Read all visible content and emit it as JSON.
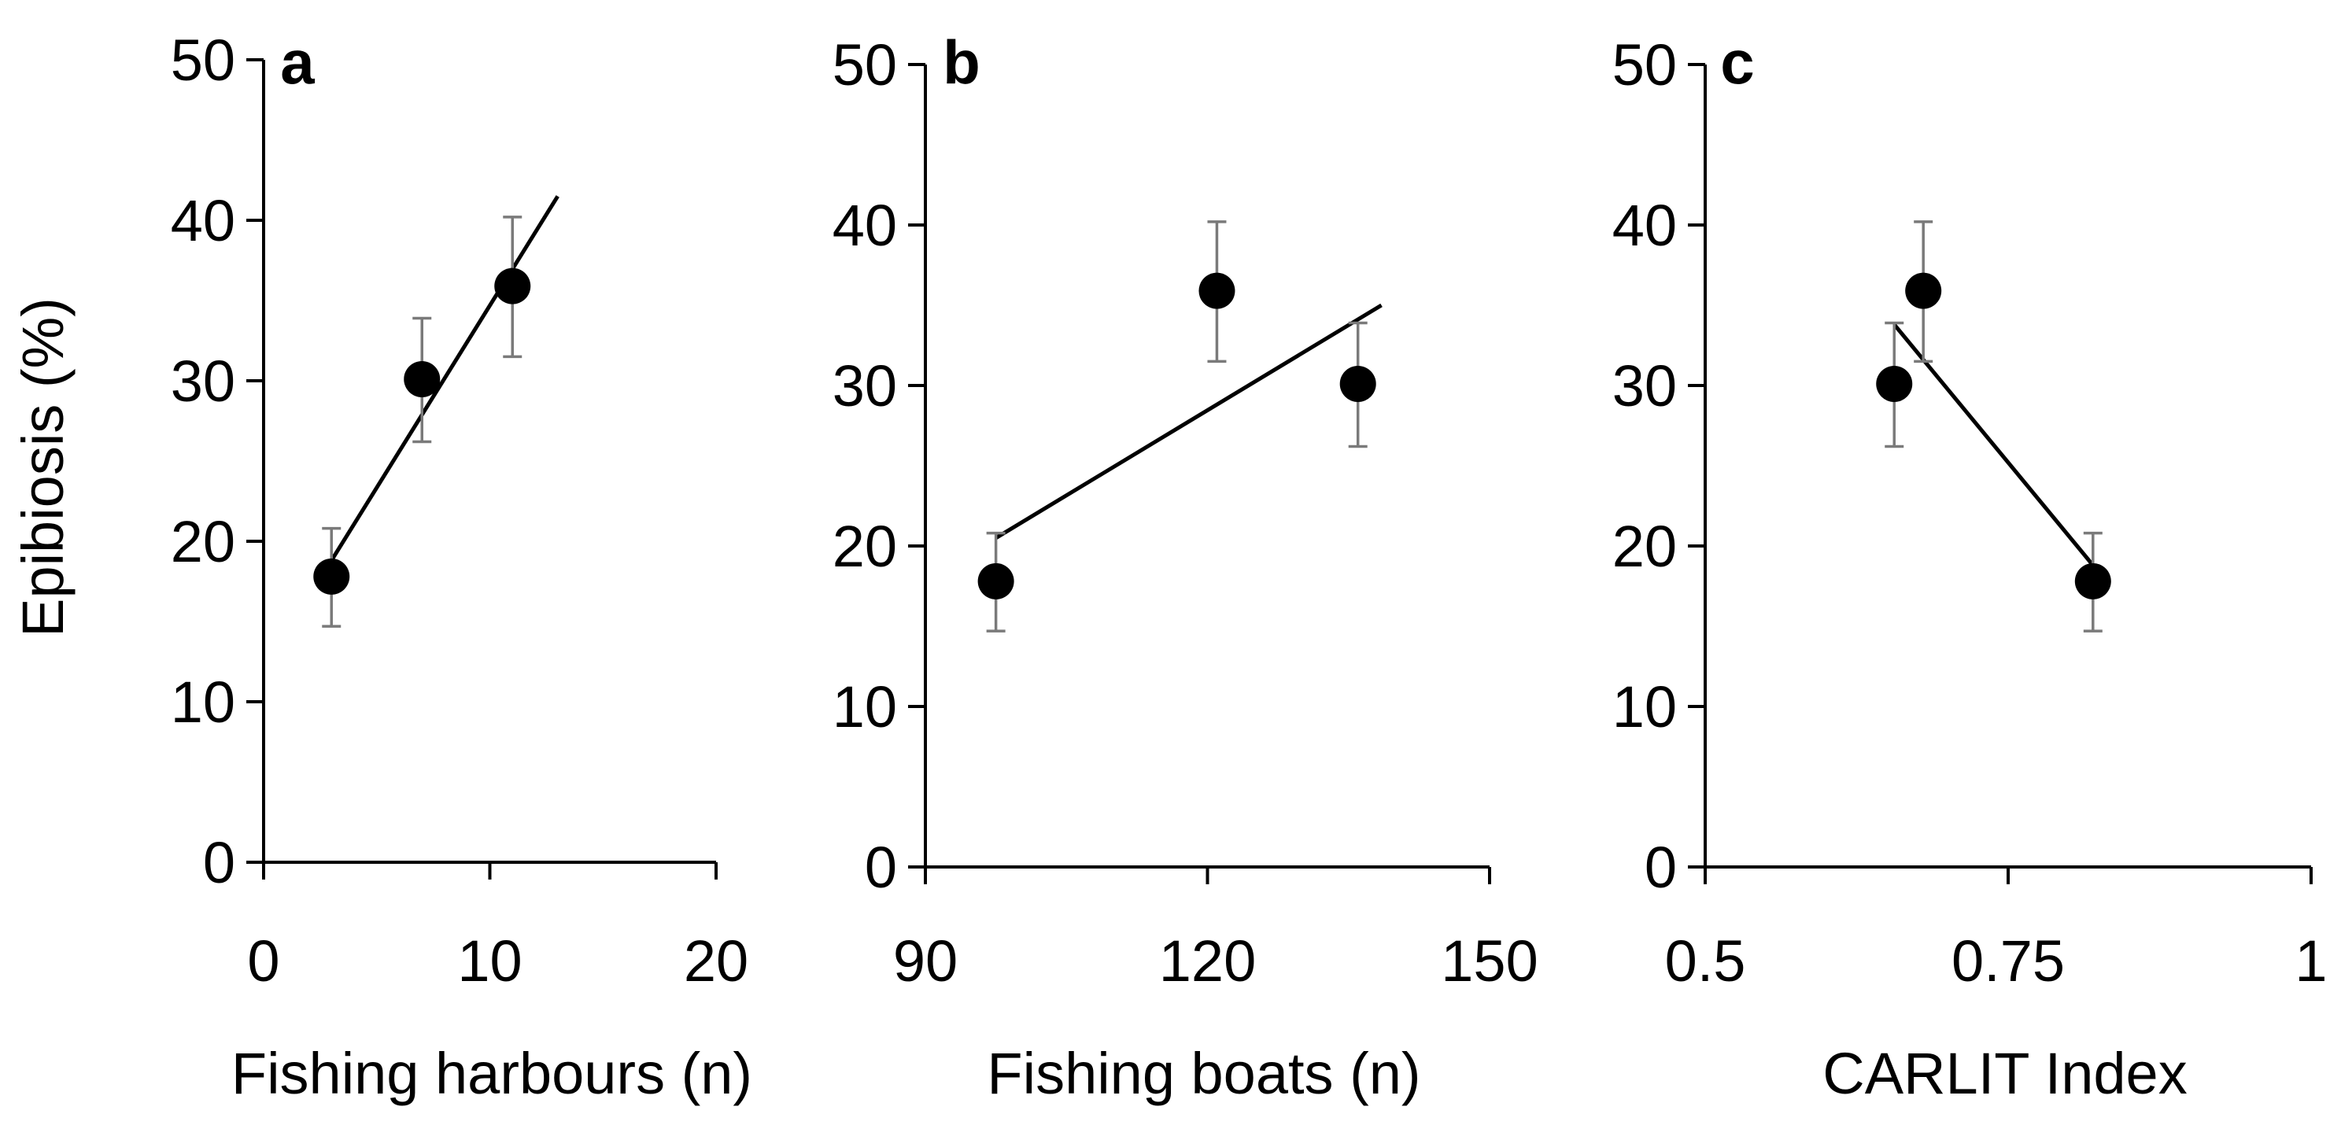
{
  "chart_data": [
    {
      "type": "scatter",
      "panel_label": "a",
      "xlabel": "Fishing harbours (n)",
      "ylabel": "Epibiosis (%)",
      "xlim": [
        0,
        20
      ],
      "ylim": [
        0,
        50
      ],
      "xticks": [
        0,
        10,
        20
      ],
      "yticks": [
        0,
        10,
        20,
        30,
        40,
        50
      ],
      "points": [
        {
          "x": 3,
          "y": 17.8,
          "err_low": 14.7,
          "err_high": 20.8
        },
        {
          "x": 7,
          "y": 30.1,
          "err_low": 26.2,
          "err_high": 33.9
        },
        {
          "x": 11,
          "y": 35.9,
          "err_low": 31.5,
          "err_high": 40.2
        }
      ],
      "trendline": {
        "x": [
          3,
          13
        ],
        "y": [
          18.8,
          41.5
        ]
      }
    },
    {
      "type": "scatter",
      "panel_label": "b",
      "xlabel": "Fishing boats (n)",
      "ylabel": "",
      "xlim": [
        90,
        150
      ],
      "ylim": [
        0,
        50
      ],
      "xticks": [
        90,
        120,
        150
      ],
      "yticks": [
        0,
        10,
        20,
        30,
        40,
        50
      ],
      "points": [
        {
          "x": 97.5,
          "y": 17.8,
          "err_low": 14.7,
          "err_high": 20.8
        },
        {
          "x": 121,
          "y": 35.9,
          "err_low": 31.5,
          "err_high": 40.2
        },
        {
          "x": 136,
          "y": 30.1,
          "err_low": 26.2,
          "err_high": 33.9
        }
      ],
      "trendline": {
        "x": [
          97.5,
          138.5
        ],
        "y": [
          20.5,
          35.0
        ]
      }
    },
    {
      "type": "scatter",
      "panel_label": "c",
      "xlabel": "CARLIT Index",
      "ylabel": "",
      "xlim": [
        0.5,
        1
      ],
      "ylim": [
        0,
        50
      ],
      "xticks": [
        0.5,
        0.75,
        1
      ],
      "xtick_labels": [
        "0.5",
        "0.75",
        "1"
      ],
      "yticks": [
        0,
        10,
        20,
        30,
        40,
        50
      ],
      "points": [
        {
          "x": 0.656,
          "y": 30.1,
          "err_low": 26.2,
          "err_high": 33.9
        },
        {
          "x": 0.68,
          "y": 35.9,
          "err_low": 31.5,
          "err_high": 40.2
        },
        {
          "x": 0.82,
          "y": 17.8,
          "err_low": 14.7,
          "err_high": 20.8
        }
      ],
      "trendline": {
        "x": [
          0.656,
          0.82
        ],
        "y": [
          33.8,
          18.8
        ]
      }
    }
  ]
}
